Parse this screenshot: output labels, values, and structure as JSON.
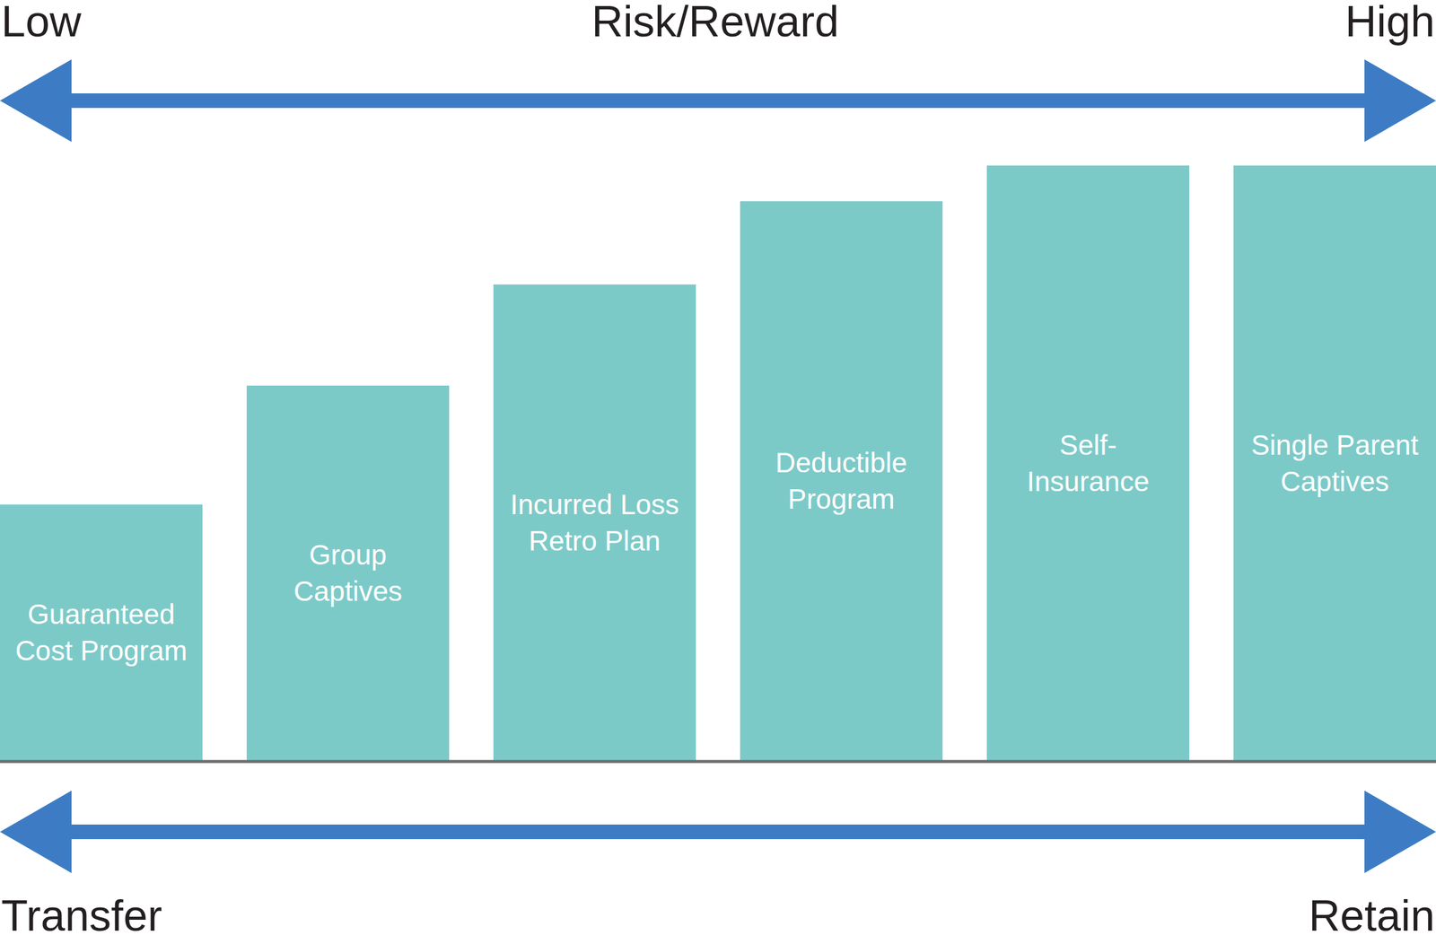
{
  "chart_data": {
    "type": "bar",
    "categories": [
      "Guaranteed Cost Program",
      "Group Captives",
      "Incurred Loss Retro Plan",
      "Deductible Program",
      "Self-Insurance",
      "Single Parent Captives"
    ],
    "values": [
      43,
      63,
      80,
      94,
      100,
      100
    ],
    "color": "#7ccac8",
    "ylim": [
      0,
      100
    ],
    "tick_labels": false,
    "grid": false,
    "annotations": [
      "Low",
      "Risk/Reward",
      "High",
      "Transfer",
      "Retain"
    ]
  }
}
